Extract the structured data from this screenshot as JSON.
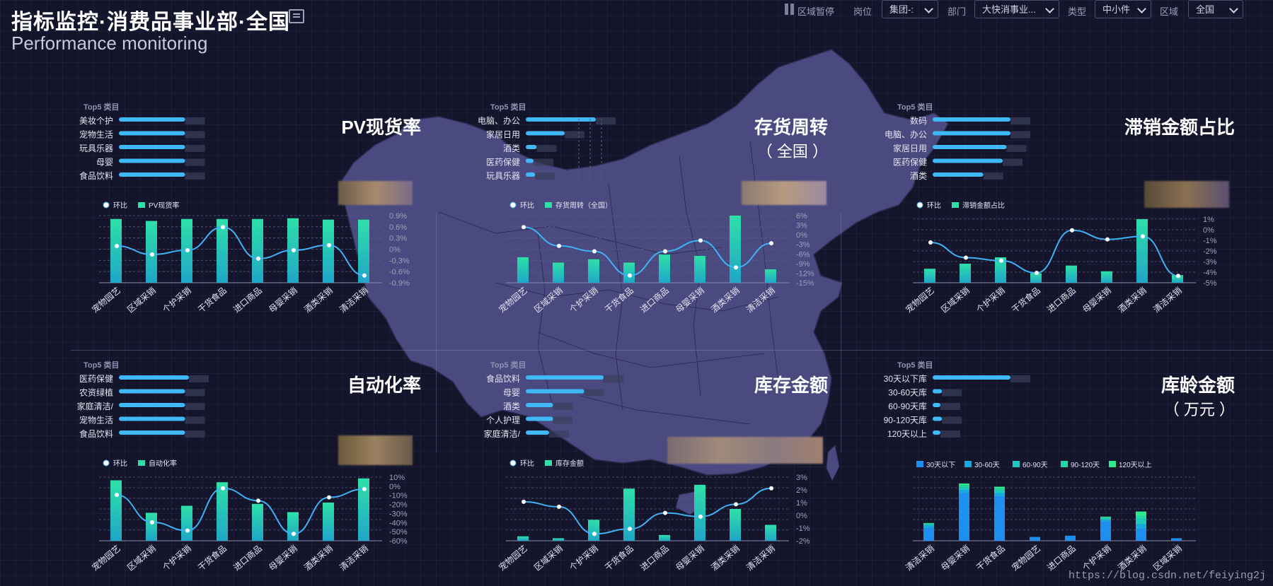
{
  "header": {
    "title": "指标监控·消费品事业部·全国",
    "subtitle": "Performance monitoring"
  },
  "filters": {
    "pause_label": "区域暂停",
    "post_label": "岗位",
    "post_value": "集团-:",
    "dept_label": "部门",
    "dept_value": "大快消事业...",
    "type_label": "类型",
    "type_value": "中小件",
    "region_label": "区域",
    "region_value": "全国"
  },
  "top5_label": "Top5 类目",
  "panels": [
    {
      "title": "PV现货率",
      "title2": "",
      "top5": [
        "美妆个护",
        "宠物生活",
        "玩具乐器",
        "母婴",
        "食品饮料"
      ],
      "top5_values": [
        0.85,
        0.85,
        0.85,
        0.85,
        0.85
      ],
      "legend_line": "环比",
      "legend_bar": "PV现货率"
    },
    {
      "title": "存货周转",
      "title2": "（ 全国 ）",
      "top5": [
        "电脑、办公",
        "家居日用",
        "酒类",
        "医药保健",
        "玩具乐器"
      ],
      "top5_values": [
        0.9,
        0.5,
        0.14,
        0.1,
        0.12
      ],
      "legend_line": "环比",
      "legend_bar": "存货周转（全国）"
    },
    {
      "title": "滞销金额占比",
      "title2": "",
      "top5": [
        "数码",
        "电脑、办公",
        "家居日用",
        "医药保健",
        "酒类"
      ],
      "top5_values": [
        1.0,
        1.0,
        0.95,
        0.9,
        0.65
      ],
      "legend_line": "环比",
      "legend_bar": "滞销金额占比"
    },
    {
      "title": "自动化率",
      "title2": "",
      "top5": [
        "医药保健",
        "农资绿植",
        "家庭清洁/",
        "宠物生活",
        "食品饮料"
      ],
      "top5_values": [
        0.9,
        0.85,
        0.85,
        0.85,
        0.85
      ],
      "legend_line": "环比",
      "legend_bar": "自动化率"
    },
    {
      "title": "库存金额",
      "title2": "",
      "top5": [
        "食品饮料",
        "母婴",
        "酒类",
        "个人护理",
        "家庭清洁/"
      ],
      "top5_values": [
        1.0,
        0.75,
        0.35,
        0.35,
        0.3
      ],
      "legend_line": "环比",
      "legend_bar": "库存金额"
    },
    {
      "title": "库龄金额",
      "title2": "（ 万元 ）",
      "top5": [
        "30天以下库",
        "30-60天库",
        "60-90天库",
        "90-120天库",
        "120天以上"
      ],
      "top5_values": [
        1.0,
        0.12,
        0.1,
        0.12,
        0.1
      ],
      "legend_line": "",
      "legend_bar": ""
    }
  ],
  "age_legend": [
    "30天以下",
    "30-60天",
    "60-90天",
    "90-120天",
    "120天以上"
  ],
  "age_colors": [
    "#1e8ef0",
    "#17a8e0",
    "#1fc8c0",
    "#22d9a3",
    "#2ee88a"
  ],
  "watermark": "https://blog.csdn.net/feiying2j",
  "colors": {
    "bar_top": "#2ee0a8",
    "bar_bottom": "#1fa6c8",
    "line": "#3fb1f5",
    "map": "#4a4a80"
  },
  "chart_data": [
    {
      "type": "bar",
      "title": "PV现货率",
      "categories": [
        "宠物园艺",
        "区域采销",
        "个护采销",
        "干货食品",
        "进口商品",
        "母婴采销",
        "酒类采销",
        "清洁采销"
      ],
      "series": [
        {
          "name": "PV现货率",
          "values": [
            0.95,
            0.92,
            0.95,
            0.95,
            0.95,
            0.96,
            0.94,
            0.94
          ]
        },
        {
          "name": "环比",
          "type": "line",
          "values": [
            0.0,
            -0.2,
            -0.1,
            0.45,
            -0.3,
            -0.1,
            0.02,
            -0.7
          ]
        }
      ],
      "y_right_ticks": [
        "0.9%",
        "0.6%",
        "0.3%",
        "0%",
        "-0.3%",
        "-0.6%",
        "-0.9%"
      ]
    },
    {
      "type": "bar",
      "title": "存货周转",
      "categories": [
        "宠物园艺",
        "区域采销",
        "个护采销",
        "干货食品",
        "进口商品",
        "母婴采销",
        "酒类采销",
        "清洁采销"
      ],
      "series": [
        {
          "name": "存货周转（全国）",
          "values": [
            0.38,
            0.3,
            0.35,
            0.3,
            0.42,
            0.4,
            1.0,
            0.2
          ]
        },
        {
          "name": "环比",
          "type": "line",
          "values": [
            8,
            1,
            -1,
            -10,
            -1,
            3,
            -7,
            2
          ]
        }
      ],
      "y_right_ticks": [
        "6%",
        "3%",
        "0%",
        "-3%",
        "-6%",
        "-9%",
        "-12%",
        "-15%"
      ]
    },
    {
      "type": "bar",
      "title": "滞销金额占比",
      "categories": [
        "宠物园艺",
        "区域采销",
        "个护采销",
        "干货食品",
        "进口商品",
        "母婴采销",
        "酒类采销",
        "清洁采销"
      ],
      "series": [
        {
          "name": "滞销金额占比",
          "values": [
            0.22,
            0.3,
            0.4,
            0.15,
            0.27,
            0.18,
            1.0,
            0.12
          ]
        },
        {
          "name": "环比",
          "type": "line",
          "values": [
            -1,
            -3.5,
            -4,
            -6,
            1,
            -0.5,
            0,
            -6.5
          ]
        }
      ],
      "y_right_ticks": [
        "1%",
        "0%",
        "-1%",
        "-2%",
        "-3%",
        "-4%",
        "-5%"
      ]
    },
    {
      "type": "bar",
      "title": "自动化率",
      "categories": [
        "宠物园艺",
        "区域采销",
        "个护采销",
        "干货食品",
        "进口商品",
        "母婴采销",
        "酒类采销",
        "清洁采销"
      ],
      "series": [
        {
          "name": "自动化率",
          "values": [
            0.95,
            0.44,
            0.55,
            0.92,
            0.58,
            0.45,
            0.6,
            0.98
          ]
        },
        {
          "name": "环比",
          "type": "line",
          "values": [
            -5,
            -38,
            -48,
            3,
            -12,
            -52,
            -8,
            2
          ]
        }
      ],
      "y_right_ticks": [
        "10%",
        "0%",
        "-10%",
        "-20%",
        "-30%",
        "-40%",
        "-50%",
        "-60%"
      ]
    },
    {
      "type": "bar",
      "title": "库存金额",
      "categories": [
        "宠物园艺",
        "区域采销",
        "个护采销",
        "干货食品",
        "进口商品",
        "母婴采销",
        "酒类采销",
        "清洁采销"
      ],
      "series": [
        {
          "name": "库存金额",
          "values": [
            0.07,
            0.04,
            0.33,
            0.82,
            0.09,
            0.88,
            0.5,
            0.25
          ]
        },
        {
          "name": "环比",
          "type": "line",
          "values": [
            1.5,
            1.1,
            -1.1,
            -0.7,
            0.6,
            0.3,
            1.3,
            2.6
          ]
        }
      ],
      "y_right_ticks": [
        "3%",
        "2%",
        "1%",
        "0%",
        "-1%",
        "-2%"
      ]
    },
    {
      "type": "bar",
      "title": "库龄金额",
      "categories": [
        "清洁采销",
        "母婴采销",
        "干货食品",
        "宠物园艺",
        "进口商品",
        "个护采销",
        "酒类采销",
        "区域采销"
      ],
      "series": [
        {
          "name": "30天以下",
          "values": [
            0.2,
            0.75,
            0.7,
            0.06,
            0.08,
            0.3,
            0.18,
            0.04
          ]
        },
        {
          "name": "30-60天",
          "values": [
            0.04,
            0.05,
            0.05,
            0,
            0,
            0.03,
            0.08,
            0
          ]
        },
        {
          "name": "60-90天",
          "values": [
            0.02,
            0.04,
            0.04,
            0,
            0,
            0.02,
            0.08,
            0
          ]
        },
        {
          "name": "90-120天",
          "values": [
            0.01,
            0.03,
            0.03,
            0,
            0,
            0.02,
            0.06,
            0
          ]
        },
        {
          "name": "120天以上",
          "values": [
            0.01,
            0.03,
            0.03,
            0,
            0,
            0.01,
            0.06,
            0
          ]
        }
      ]
    }
  ]
}
